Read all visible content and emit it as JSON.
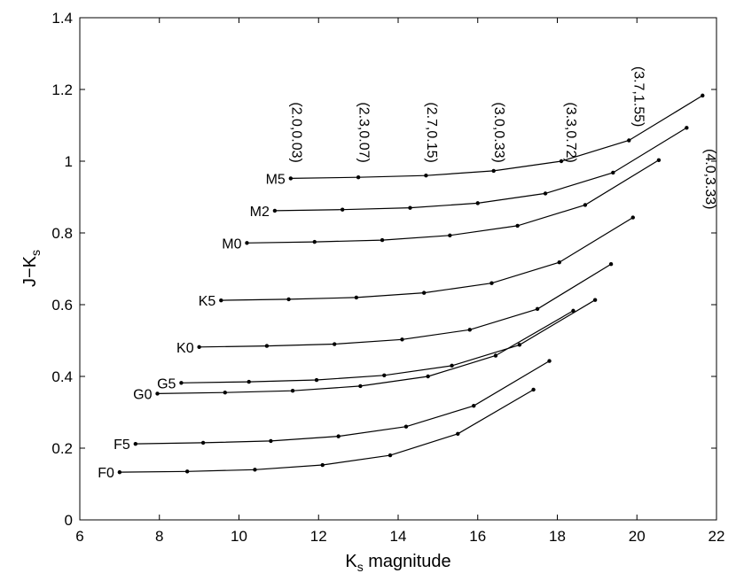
{
  "chart_data": {
    "type": "line",
    "title": "",
    "xlabel": {
      "main": "K",
      "sub": "s",
      "rest": " magnitude"
    },
    "ylabel": {
      "main": "J−K",
      "sub": "s"
    },
    "xlim": [
      6,
      22
    ],
    "ylim": [
      0,
      1.4
    ],
    "xticks": [
      6,
      8,
      10,
      12,
      14,
      16,
      18,
      20,
      22
    ],
    "yticks": [
      0,
      0.2,
      0.4,
      0.6,
      0.8,
      1,
      1.2,
      1.4
    ],
    "ytick_labels": [
      "0",
      "0.2",
      "0.4",
      "0.6",
      "0.8",
      "1",
      "1.2",
      "1.4"
    ],
    "grid": false,
    "legend": "none",
    "series": [
      {
        "name": "F0",
        "points": [
          [
            7.0,
            0.133
          ],
          [
            8.7,
            0.135
          ],
          [
            10.4,
            0.14
          ],
          [
            12.1,
            0.153
          ],
          [
            13.8,
            0.18
          ],
          [
            15.5,
            0.24
          ],
          [
            17.4,
            0.363
          ]
        ]
      },
      {
        "name": "F5",
        "points": [
          [
            7.4,
            0.212
          ],
          [
            9.1,
            0.215
          ],
          [
            10.8,
            0.22
          ],
          [
            12.5,
            0.233
          ],
          [
            14.2,
            0.26
          ],
          [
            15.9,
            0.318
          ],
          [
            17.8,
            0.443
          ]
        ]
      },
      {
        "name": "G0",
        "points": [
          [
            7.95,
            0.352
          ],
          [
            9.65,
            0.355
          ],
          [
            11.35,
            0.36
          ],
          [
            13.05,
            0.373
          ],
          [
            14.75,
            0.4
          ],
          [
            16.45,
            0.458
          ],
          [
            18.4,
            0.583
          ]
        ]
      },
      {
        "name": "G5",
        "points": [
          [
            8.55,
            0.382
          ],
          [
            10.25,
            0.385
          ],
          [
            11.95,
            0.39
          ],
          [
            13.65,
            0.403
          ],
          [
            15.35,
            0.43
          ],
          [
            17.05,
            0.488
          ],
          [
            18.95,
            0.613
          ]
        ]
      },
      {
        "name": "K0",
        "points": [
          [
            9.0,
            0.482
          ],
          [
            10.7,
            0.485
          ],
          [
            12.4,
            0.49
          ],
          [
            14.1,
            0.503
          ],
          [
            15.8,
            0.53
          ],
          [
            17.5,
            0.588
          ],
          [
            19.35,
            0.713
          ]
        ]
      },
      {
        "name": "K5",
        "points": [
          [
            9.55,
            0.612
          ],
          [
            11.25,
            0.615
          ],
          [
            12.95,
            0.62
          ],
          [
            14.65,
            0.633
          ],
          [
            16.35,
            0.66
          ],
          [
            18.05,
            0.718
          ],
          [
            19.9,
            0.843
          ]
        ]
      },
      {
        "name": "M0",
        "points": [
          [
            10.2,
            0.772
          ],
          [
            11.9,
            0.775
          ],
          [
            13.6,
            0.78
          ],
          [
            15.3,
            0.793
          ],
          [
            17.0,
            0.82
          ],
          [
            18.7,
            0.878
          ],
          [
            20.55,
            1.003
          ]
        ]
      },
      {
        "name": "M2",
        "points": [
          [
            10.9,
            0.862
          ],
          [
            12.6,
            0.865
          ],
          [
            14.3,
            0.87
          ],
          [
            16.0,
            0.883
          ],
          [
            17.7,
            0.91
          ],
          [
            19.4,
            0.968
          ],
          [
            21.25,
            1.093
          ]
        ]
      },
      {
        "name": "M5",
        "points": [
          [
            11.3,
            0.952
          ],
          [
            13.0,
            0.955
          ],
          [
            14.7,
            0.96
          ],
          [
            16.4,
            0.973
          ],
          [
            18.1,
            1.0
          ],
          [
            19.8,
            1.058
          ],
          [
            21.65,
            1.183
          ]
        ]
      }
    ],
    "annotations": [
      {
        "text": "(2.0,0.03)",
        "x": 11.2,
        "y": 1.08
      },
      {
        "text": "(2.3,0.07)",
        "x": 12.9,
        "y": 1.08
      },
      {
        "text": "(2.7,0.15)",
        "x": 14.6,
        "y": 1.08
      },
      {
        "text": "(3.0,0.33)",
        "x": 16.3,
        "y": 1.08
      },
      {
        "text": "(3.3,0.72)",
        "x": 18.1,
        "y": 1.08
      },
      {
        "text": "(3.7,1.55)",
        "x": 19.8,
        "y": 1.18
      },
      {
        "text": "(4.0,3.33)",
        "x": 21.6,
        "y": 0.95
      }
    ]
  }
}
